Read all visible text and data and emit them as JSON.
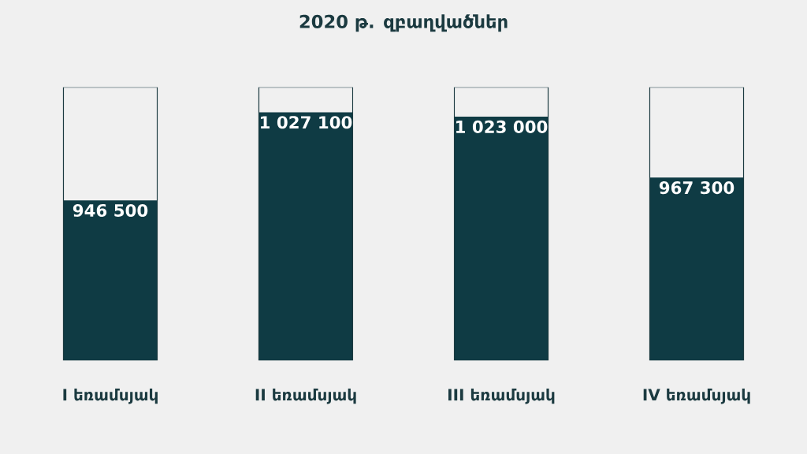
{
  "chart_data": {
    "type": "bar",
    "title": "2020 թ. զբաղվածներ",
    "categories": [
      "I եռամսյակ",
      "II եռամսյակ",
      "III եռամսյակ",
      "IV եռամսյակ"
    ],
    "values": [
      946500,
      1027100,
      1023000,
      967300
    ],
    "value_labels": [
      "946 500",
      "1 027 100",
      "1 023 000",
      "967 300"
    ],
    "color": "#0f3b44",
    "ylim": [
      800000,
      1050000
    ]
  }
}
